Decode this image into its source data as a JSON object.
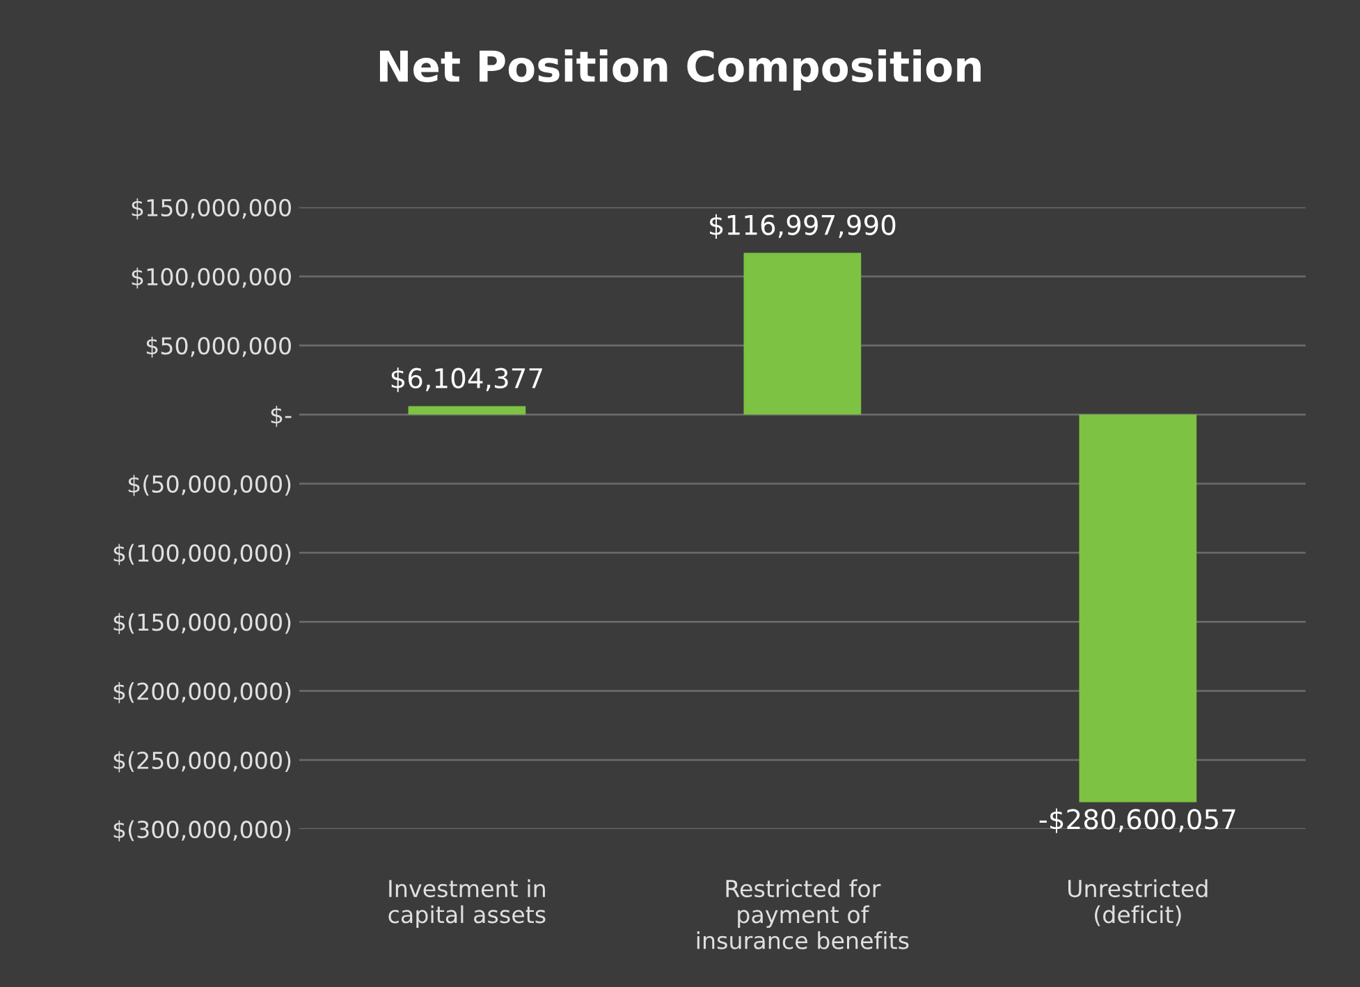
{
  "chart_data": {
    "type": "bar",
    "title": "Net Position Composition",
    "categories": [
      "Investment in\ncapital assets",
      "Restricted for\npayment of\ninsurance benefits",
      "Unrestricted\n(deficit)"
    ],
    "values": [
      6104377,
      116997990,
      -280600057
    ],
    "value_labels": [
      "$6,104,377",
      "$116,997,990",
      "-$280,600,057"
    ],
    "color": "#7dc242",
    "ylim": [
      -300000000,
      150000000
    ],
    "yticks": [
      {
        "value": 150000000,
        "label": "$150,000,000"
      },
      {
        "value": 100000000,
        "label": "$100,000,000"
      },
      {
        "value": 50000000,
        "label": "$50,000,000"
      },
      {
        "value": 0,
        "label": "$-"
      },
      {
        "value": -50000000,
        "label": "$(50,000,000)"
      },
      {
        "value": -100000000,
        "label": "$(100,000,000)"
      },
      {
        "value": -150000000,
        "label": "$(150,000,000)"
      },
      {
        "value": -200000000,
        "label": "$(200,000,000)"
      },
      {
        "value": -250000000,
        "label": "$(250,000,000)"
      },
      {
        "value": -300000000,
        "label": "$(300,000,000)"
      }
    ],
    "grid": "y"
  }
}
